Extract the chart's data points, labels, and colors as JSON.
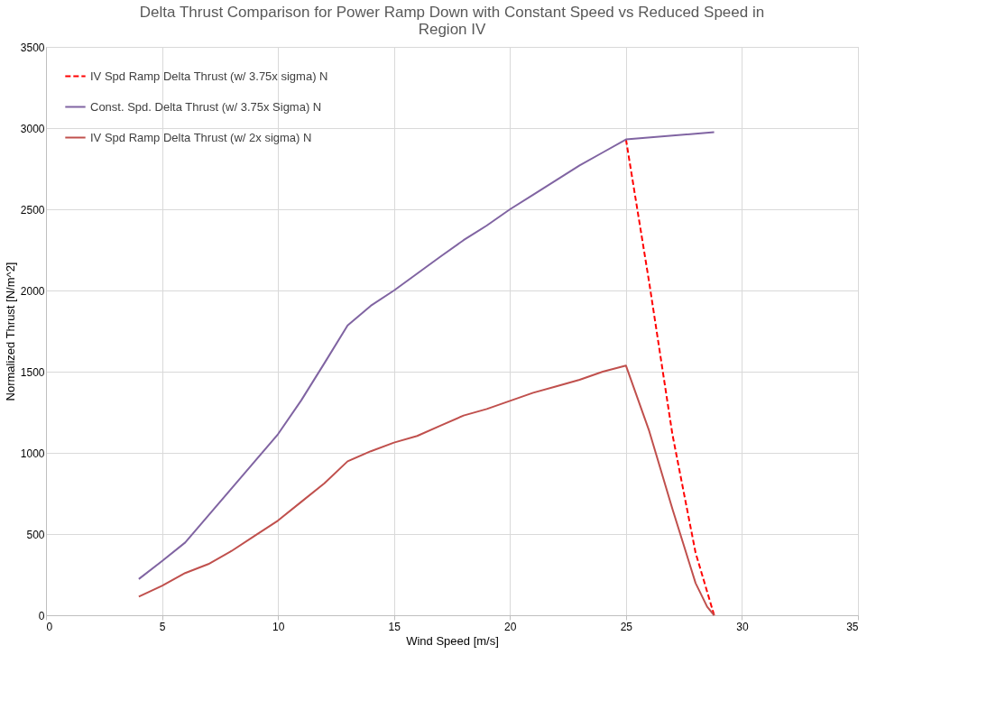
{
  "chart_data": {
    "type": "line",
    "title": "Delta Thrust Comparison for Power Ramp Down with Constant Speed vs Reduced Speed in Region IV",
    "xlabel": "Wind Speed [m/s]",
    "ylabel": "Normalized Thrust [N/m^2]",
    "xlim": [
      0,
      35
    ],
    "xticks": [
      0,
      5,
      10,
      15,
      20,
      25,
      30,
      35
    ],
    "ylim": [
      0,
      3500
    ],
    "yticks": [
      0,
      500,
      1000,
      1500,
      2000,
      2500,
      3000,
      3500
    ],
    "grid": true,
    "legend": "top left",
    "marker": "none",
    "series": [
      {
        "name": "IV Spd Ramp Delta Thrust (w/ 3.75x sigma) N",
        "color": "#ff0000",
        "line_style": "dashed",
        "x": [
          25,
          26,
          27,
          28,
          28.8
        ],
        "values": [
          2930,
          2050,
          1115,
          385,
          0
        ]
      },
      {
        "name": "Const. Spd. Delta Thrust (w/ 3.75x Sigma) N",
        "color": "#8064a2",
        "line_style": "solid",
        "x": [
          4,
          5,
          6,
          7,
          8,
          9,
          10,
          11,
          12,
          13,
          14,
          15,
          16,
          17,
          18,
          19,
          20,
          21,
          22,
          23,
          24,
          25,
          28.8
        ],
        "values": [
          223,
          333,
          448,
          615,
          781,
          948,
          1115,
          1323,
          1552,
          1785,
          1906,
          2000,
          2104,
          2208,
          2310,
          2400,
          2500,
          2590,
          2680,
          2770,
          2850,
          2930,
          2975
        ]
      },
      {
        "name": "IV Spd Ramp Delta Thrust (w/ 2x sigma) N",
        "color": "#c0504d",
        "line_style": "solid",
        "x": [
          4,
          5,
          6,
          7,
          8,
          9,
          10,
          11,
          12,
          13,
          14,
          15,
          16,
          17,
          18,
          19,
          20,
          21,
          22,
          23,
          24,
          25,
          26,
          27,
          28,
          28.5,
          28.8
        ],
        "values": [
          115,
          181,
          260,
          315,
          396,
          490,
          583,
          698,
          813,
          948,
          1010,
          1063,
          1104,
          1167,
          1230,
          1270,
          1320,
          1370,
          1410,
          1450,
          1500,
          1537,
          1135,
          656,
          198,
          52,
          0
        ]
      }
    ]
  }
}
